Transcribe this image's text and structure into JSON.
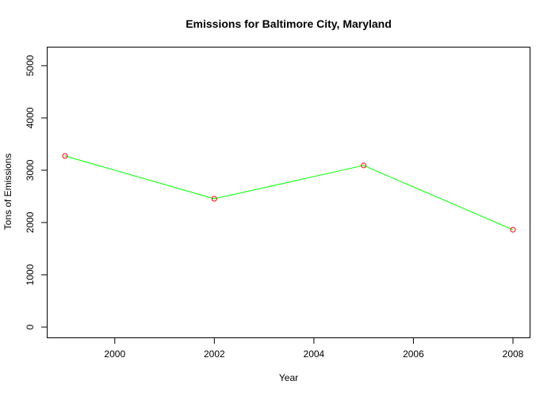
{
  "colors": {
    "line": "#00ff00",
    "point": "#ff0000",
    "axis": "#000000",
    "background": "#ffffff"
  },
  "chart_data": {
    "type": "line",
    "title": "Emissions for Baltimore City, Maryland",
    "xlabel": "Year",
    "ylabel": "Tons of Emissions",
    "x": [
      1999,
      2002,
      2005,
      2008
    ],
    "series": [
      {
        "values": [
          3274,
          2454,
          3091,
          1862
        ],
        "marker": "open-circle"
      }
    ],
    "xlim": [
      1999,
      2008
    ],
    "ylim": [
      0,
      5150
    ],
    "x_ticks": [
      2000,
      2002,
      2004,
      2006,
      2008
    ],
    "x_tick_labels": [
      "2000",
      "2002",
      "2004",
      "2006",
      "2008"
    ],
    "y_ticks": [
      0,
      1000,
      2000,
      3000,
      4000,
      5000
    ],
    "y_tick_labels": [
      "0",
      "1000",
      "2000",
      "3000",
      "4000",
      "5000"
    ],
    "y_tick_labels_rotated": true,
    "grid": false,
    "legend": "none"
  }
}
